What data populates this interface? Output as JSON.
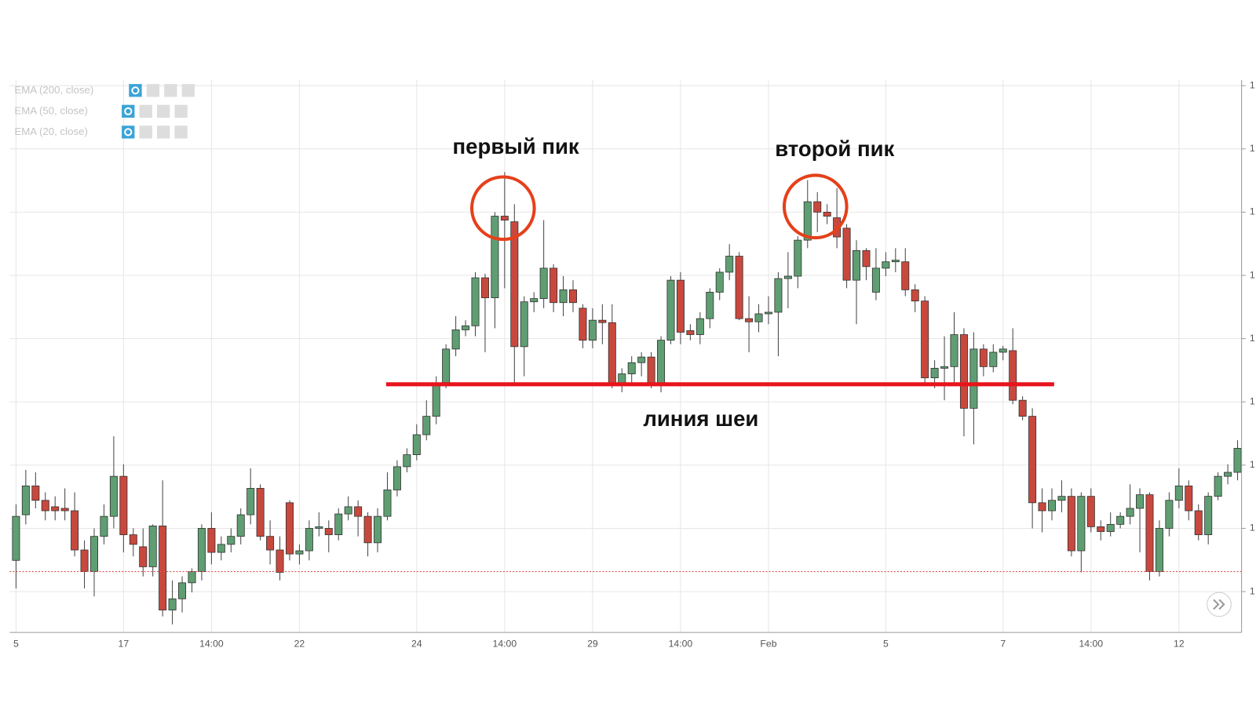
{
  "chart_data": {
    "type": "candlestick",
    "indicators": [
      "EMA (200, close)",
      "EMA (50, close)",
      "EMA (20, close)"
    ],
    "annotations": [
      "первый пик",
      "второй пик",
      "линия шеи"
    ],
    "categories": [
      "5",
      null,
      null,
      null,
      null,
      null,
      null,
      null,
      null,
      null,
      null,
      "17",
      null,
      null,
      null,
      null,
      null,
      null,
      null,
      null,
      "14:00",
      null,
      null,
      null,
      null,
      null,
      null,
      null,
      null,
      "22",
      null,
      null,
      null,
      null,
      null,
      null,
      null,
      null,
      null,
      null,
      null,
      "24",
      null,
      null,
      null,
      null,
      null,
      null,
      null,
      null,
      "14:00",
      null,
      null,
      null,
      null,
      null,
      null,
      null,
      null,
      "29",
      null,
      null,
      null,
      null,
      null,
      null,
      null,
      null,
      "14:00",
      null,
      null,
      null,
      null,
      null,
      null,
      null,
      null,
      "Feb",
      null,
      null,
      null,
      null,
      null,
      null,
      null,
      null,
      null,
      null,
      null,
      "5",
      null,
      null,
      null,
      null,
      null,
      null,
      null,
      null,
      null,
      null,
      null,
      "7",
      null,
      null,
      null,
      null,
      null,
      null,
      null,
      null,
      "14:00",
      null,
      null,
      null,
      null,
      null,
      null,
      null,
      null,
      "12",
      null,
      null,
      null,
      null,
      null,
      null
    ],
    "open": [
      90,
      147,
      183,
      165,
      157,
      155,
      152,
      103,
      76,
      120,
      145,
      195,
      122,
      107,
      82,
      133,
      28,
      42,
      62,
      76,
      130,
      100,
      110,
      120,
      147,
      180,
      120,
      103,
      162,
      98,
      102,
      130,
      130,
      122,
      148,
      157,
      145,
      112,
      145,
      178,
      207,
      222,
      247,
      270,
      312,
      354,
      378,
      383,
      443,
      418,
      520,
      513,
      357,
      413,
      417,
      455,
      412,
      428,
      405,
      365,
      390,
      387,
      310,
      323,
      337,
      344,
      310,
      365,
      440,
      377,
      372,
      392,
      425,
      450,
      470,
      392,
      388,
      398,
      400,
      442,
      445,
      490,
      538,
      525,
      518,
      505,
      440,
      477,
      425,
      455,
      463,
      463,
      428,
      414,
      318,
      330,
      332,
      372,
      280,
      354,
      332,
      350,
      352,
      290,
      270,
      162,
      152,
      165,
      170,
      102,
      170,
      132,
      126,
      135,
      145,
      155,
      172,
      76,
      130,
      165,
      183,
      152,
      122,
      170,
      195,
      200
    ],
    "high": [
      160,
      203,
      200,
      175,
      170,
      180,
      175,
      115,
      130,
      160,
      245,
      210,
      130,
      130,
      135,
      190,
      65,
      70,
      80,
      135,
      150,
      120,
      130,
      155,
      205,
      185,
      140,
      120,
      165,
      110,
      140,
      150,
      140,
      155,
      170,
      165,
      150,
      155,
      200,
      215,
      230,
      260,
      290,
      320,
      360,
      395,
      390,
      450,
      448,
      525,
      575,
      535,
      420,
      425,
      515,
      460,
      445,
      440,
      410,
      405,
      410,
      410,
      330,
      345,
      350,
      350,
      370,
      445,
      450,
      385,
      400,
      430,
      455,
      485,
      475,
      420,
      410,
      420,
      450,
      475,
      495,
      565,
      550,
      535,
      555,
      510,
      490,
      480,
      480,
      475,
      480,
      480,
      435,
      420,
      340,
      370,
      400,
      380,
      375,
      360,
      360,
      358,
      380,
      295,
      280,
      180,
      180,
      190,
      180,
      175,
      180,
      140,
      150,
      150,
      185,
      180,
      175,
      140,
      175,
      205,
      190,
      160,
      175,
      200,
      210,
      240
    ],
    "low": [
      55,
      135,
      155,
      140,
      140,
      140,
      95,
      55,
      45,
      110,
      130,
      100,
      95,
      70,
      70,
      20,
      10,
      25,
      50,
      65,
      85,
      90,
      100,
      110,
      135,
      115,
      85,
      65,
      90,
      85,
      90,
      120,
      100,
      115,
      140,
      120,
      95,
      100,
      140,
      170,
      200,
      215,
      240,
      260,
      305,
      345,
      370,
      370,
      350,
      380,
      430,
      310,
      320,
      400,
      405,
      400,
      395,
      400,
      355,
      355,
      360,
      305,
      300,
      310,
      320,
      305,
      300,
      360,
      360,
      365,
      360,
      380,
      415,
      440,
      390,
      350,
      375,
      385,
      345,
      405,
      430,
      480,
      500,
      510,
      480,
      430,
      385,
      440,
      415,
      445,
      450,
      420,
      400,
      310,
      305,
      290,
      310,
      245,
      235,
      320,
      325,
      340,
      285,
      265,
      130,
      125,
      140,
      150,
      95,
      75,
      125,
      115,
      120,
      130,
      135,
      100,
      65,
      70,
      120,
      155,
      140,
      115,
      110,
      165,
      185,
      190
    ],
    "close": [
      145,
      183,
      165,
      152,
      152,
      152,
      103,
      76,
      120,
      145,
      195,
      122,
      110,
      82,
      133,
      28,
      42,
      62,
      76,
      130,
      100,
      110,
      120,
      147,
      180,
      120,
      103,
      75,
      98,
      102,
      130,
      132,
      122,
      148,
      157,
      145,
      112,
      145,
      178,
      207,
      222,
      247,
      270,
      310,
      354,
      378,
      383,
      443,
      418,
      520,
      515,
      357,
      413,
      417,
      455,
      412,
      428,
      412,
      365,
      390,
      387,
      310,
      323,
      337,
      344,
      310,
      365,
      440,
      375,
      372,
      392,
      425,
      450,
      470,
      392,
      388,
      398,
      400,
      442,
      445,
      490,
      538,
      525,
      520,
      494,
      440,
      477,
      457,
      455,
      463,
      465,
      428,
      414,
      318,
      330,
      332,
      372,
      280,
      354,
      332,
      350,
      354,
      290,
      270,
      162,
      152,
      165,
      170,
      102,
      170,
      132,
      126,
      135,
      145,
      155,
      172,
      76,
      130,
      165,
      183,
      152,
      122,
      170,
      195,
      200,
      230
    ],
    "up_color": "#5f9e72",
    "down_color": "#c9483d",
    "neckline": 310,
    "neckline_color": "#e8141c",
    "price_line": 76,
    "price_line_color": "#d9534f",
    "ylim": [
      0,
      690
    ],
    "yticks": [
      {
        "value": 51,
        "label": "1"
      },
      {
        "value": 130,
        "label": "1"
      },
      {
        "value": 209,
        "label": "1"
      },
      {
        "value": 288,
        "label": "1"
      },
      {
        "value": 367,
        "label": "1"
      },
      {
        "value": 446,
        "label": "1"
      },
      {
        "value": 525,
        "label": "1"
      },
      {
        "value": 604,
        "label": "1"
      },
      {
        "value": 683,
        "label": "1"
      }
    ],
    "grid": true
  }
}
